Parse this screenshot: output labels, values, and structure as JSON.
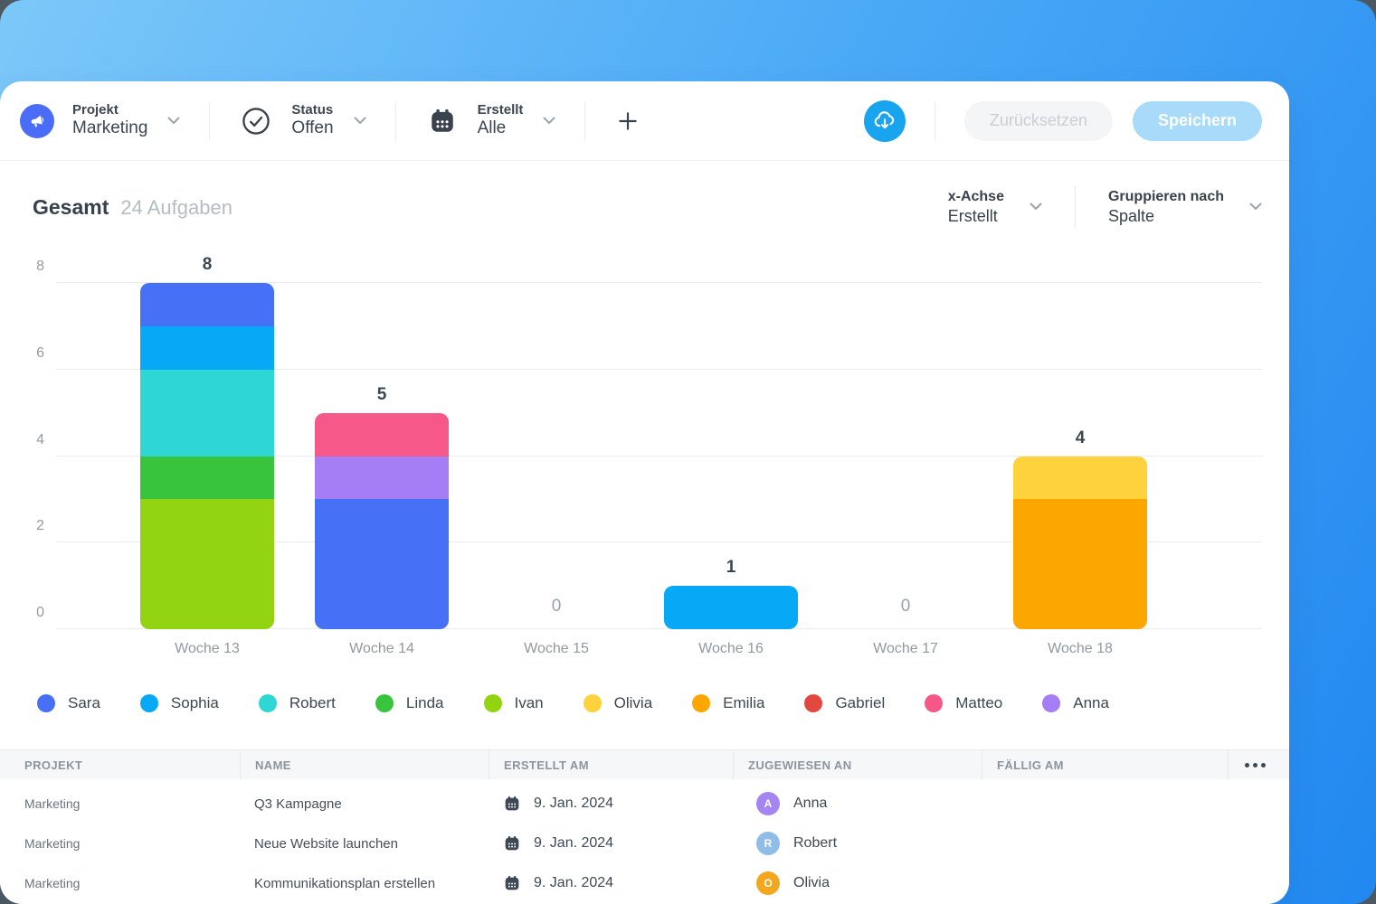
{
  "toolbar": {
    "filters": [
      {
        "label": "Projekt",
        "value": "Marketing",
        "icon": "megaphone-icon",
        "icon_bg": "#4a6cf7"
      },
      {
        "label": "Status",
        "value": "Offen",
        "icon": "check-circle-icon",
        "icon_bg": ""
      },
      {
        "label": "Erstellt",
        "value": "Alle",
        "icon": "calendar-icon",
        "icon_bg": ""
      }
    ],
    "upload_bg": "#18a4ef",
    "reset_label": "Zurücksetzen",
    "save_label": "Speichern"
  },
  "chart_header": {
    "title": "Gesamt",
    "subtitle": "24 Aufgaben",
    "xaxis_label": "x-Achse",
    "xaxis_value": "Erstellt",
    "group_label": "Gruppieren nach",
    "group_value": "Spalte"
  },
  "chart_data": {
    "type": "bar",
    "stacked": true,
    "categories": [
      "Woche 13",
      "Woche 14",
      "Woche 15",
      "Woche 16",
      "Woche 17",
      "Woche 18"
    ],
    "totals": [
      8,
      5,
      0,
      1,
      0,
      4
    ],
    "stacks": [
      [
        {
          "name": "Ivan",
          "value": 3
        },
        {
          "name": "Linda",
          "value": 1
        },
        {
          "name": "Robert",
          "value": 2
        },
        {
          "name": "Sophia",
          "value": 1
        },
        {
          "name": "Sara",
          "value": 1
        }
      ],
      [
        {
          "name": "Sara",
          "value": 3
        },
        {
          "name": "Anna",
          "value": 1
        },
        {
          "name": "Matteo",
          "value": 1
        }
      ],
      [],
      [
        {
          "name": "Sophia",
          "value": 1
        }
      ],
      [],
      [
        {
          "name": "Emilia",
          "value": 3
        },
        {
          "name": "Olivia",
          "value": 1
        }
      ]
    ],
    "ylim": [
      0,
      8
    ],
    "yticks": [
      0,
      2,
      4,
      6,
      8
    ],
    "grid": true,
    "legend_position": "bottom"
  },
  "legend": {
    "items": [
      {
        "name": "Sara",
        "color": "#4670f6"
      },
      {
        "name": "Sophia",
        "color": "#07a9f7"
      },
      {
        "name": "Robert",
        "color": "#2fd7d4"
      },
      {
        "name": "Linda",
        "color": "#39c43e"
      },
      {
        "name": "Ivan",
        "color": "#92d411"
      },
      {
        "name": "Olivia",
        "color": "#fdd23c"
      },
      {
        "name": "Emilia",
        "color": "#fca700"
      },
      {
        "name": "Gabriel",
        "color": "#e2483d"
      },
      {
        "name": "Matteo",
        "color": "#f65889"
      },
      {
        "name": "Anna",
        "color": "#a57df5"
      }
    ]
  },
  "table": {
    "columns": [
      "PROJEKT",
      "NAME",
      "ERSTELLT AM",
      "ZUGEWIESEN AN",
      "FÄLLIG AM"
    ],
    "rows": [
      {
        "project": "Marketing",
        "name": "Q3 Kampagne",
        "created": "9. Jan. 2024",
        "assignee": "Anna",
        "assignee_color": "#a585f2",
        "due": ""
      },
      {
        "project": "Marketing",
        "name": "Neue Website launchen",
        "created": "9. Jan. 2024",
        "assignee": "Robert",
        "assignee_color": "#8fbde8",
        "due": ""
      },
      {
        "project": "Marketing",
        "name": "Kommunikationsplan erstellen",
        "created": "9. Jan. 2024",
        "assignee": "Olivia",
        "assignee_color": "#f2a71f",
        "due": ""
      }
    ]
  }
}
